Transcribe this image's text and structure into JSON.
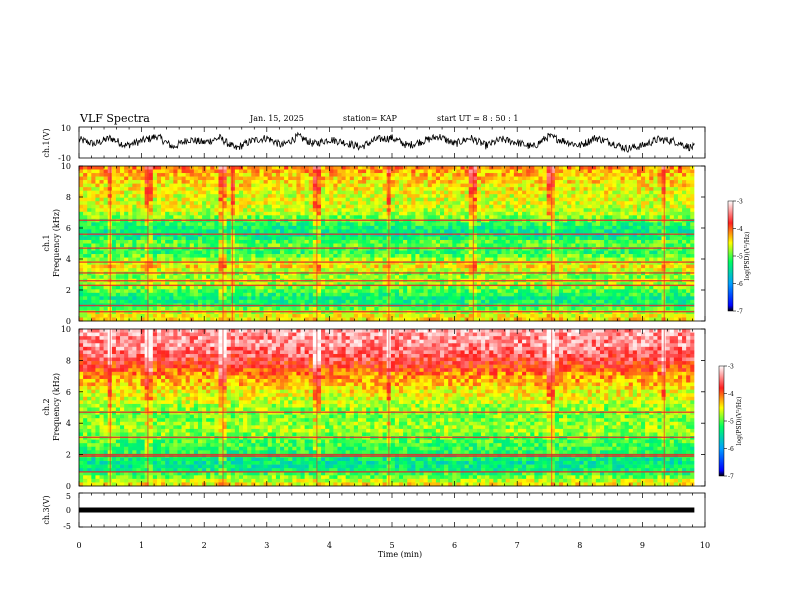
{
  "header": {
    "title": "VLF Spectra",
    "date": "Jan. 15, 2025",
    "station": "station= KAP",
    "start_ut": "start  UT =  8 : 50 : 1"
  },
  "chart_data": [
    {
      "type": "line",
      "panel": "ch1-waveform",
      "ylabel": "ch.1(V)",
      "ylim": [
        -10,
        10
      ],
      "yticks": [
        "10",
        "-10"
      ],
      "xlim": [
        0,
        10
      ],
      "x_end_min": 9.83,
      "series": [
        {
          "x": [
            0,
            0.25,
            0.5,
            0.75,
            1,
            1.25,
            1.5,
            1.75,
            2,
            2.25,
            2.5,
            2.75,
            3,
            3.25,
            3.5,
            3.75,
            4,
            4.25,
            4.5,
            4.75,
            5,
            5.25,
            5.5,
            5.75,
            6,
            6.25,
            6.5,
            6.75,
            7,
            7.25,
            7.5,
            7.75,
            8,
            8.25,
            8.5,
            8.75,
            9,
            9.25,
            9.5,
            9.75
          ],
          "values": [
            2,
            -1,
            3,
            -2,
            1,
            4,
            -3,
            2,
            0,
            3,
            -4,
            1,
            3,
            -2,
            4,
            -1,
            2,
            0,
            -3,
            2,
            3,
            -2,
            1,
            4,
            -1,
            3,
            -2,
            2,
            0,
            -3,
            4,
            1,
            -2,
            3,
            0,
            -4,
            -2,
            2,
            1,
            -3
          ]
        }
      ],
      "color": "#000000"
    },
    {
      "type": "heatmap",
      "panel": "ch1-spectrogram",
      "ylabel": "ch.1",
      "ylabel2": "Frequency (kHz)",
      "ylim": [
        0,
        10
      ],
      "yticks": [
        "0",
        "2",
        "4",
        "6",
        "8",
        "10"
      ],
      "xlim": [
        0,
        10
      ],
      "x_end_min": 9.83,
      "colorbar": {
        "label": "log(PSD)(V²/Hz)",
        "range": [
          -7,
          -3
        ],
        "ticks": [
          "-3",
          "-4",
          "-5",
          "-6",
          "-7"
        ],
        "colors": [
          "#ffffff",
          "#ff2020",
          "#ffff00",
          "#00ff60",
          "#00a0ff",
          "#0000ff",
          "#000000"
        ]
      },
      "freq_profile_khz": [
        0,
        0.5,
        1,
        1.5,
        2,
        2.5,
        3,
        3.5,
        4,
        4.5,
        5,
        5.5,
        6,
        6.5,
        7,
        7.5,
        8,
        8.5,
        9,
        9.5,
        10
      ],
      "freq_profile_logpsd": [
        -4.4,
        -4.6,
        -5.2,
        -5.3,
        -5.0,
        -4.7,
        -4.9,
        -4.4,
        -4.8,
        -5.2,
        -4.9,
        -5.4,
        -5.3,
        -5.0,
        -4.7,
        -4.6,
        -4.6,
        -4.5,
        -4.4,
        -4.3,
        -4.1
      ],
      "lines_khz": [
        3.8,
        2.6,
        2.3,
        5.6,
        6.5,
        4.7,
        1.0,
        0.6,
        3.1
      ],
      "bursts_min": [
        0.5,
        1.1,
        2.3,
        2.45,
        3.8,
        4.95,
        6.3,
        7.55,
        9.35
      ]
    },
    {
      "type": "heatmap",
      "panel": "ch2-spectrogram",
      "ylabel": "ch.2",
      "ylabel2": "Frequency (kHz)",
      "ylim": [
        0,
        10
      ],
      "yticks": [
        "0",
        "2",
        "4",
        "6",
        "8",
        "10"
      ],
      "xlim": [
        0,
        10
      ],
      "x_end_min": 9.83,
      "colorbar": {
        "label": "log(PSD)(V²/Hz)",
        "range": [
          -7,
          -3
        ],
        "ticks": [
          "-3",
          "-4",
          "-5",
          "-6",
          "-7"
        ],
        "colors": [
          "#ffffff",
          "#ff2020",
          "#ffff00",
          "#00ff60",
          "#00a0ff",
          "#0000ff",
          "#000000"
        ]
      },
      "freq_profile_khz": [
        0,
        0.5,
        1,
        1.5,
        2,
        2.5,
        3,
        3.5,
        4,
        4.5,
        5,
        5.5,
        6,
        6.5,
        7,
        7.5,
        8,
        8.5,
        9,
        9.5,
        10
      ],
      "freq_profile_logpsd": [
        -4.4,
        -4.8,
        -5.3,
        -5.4,
        -5.2,
        -5.1,
        -5.0,
        -4.8,
        -4.8,
        -4.9,
        -4.8,
        -4.6,
        -4.5,
        -4.3,
        -4.2,
        -3.9,
        -3.7,
        -3.5,
        -3.4,
        -3.4,
        -3.3
      ],
      "lines_khz": [
        4.7,
        3.1,
        2.0,
        1.9,
        0.9
      ],
      "bursts_min": [
        0.5,
        1.1,
        2.3,
        3.8,
        4.95,
        7.55,
        9.35
      ]
    },
    {
      "type": "line",
      "panel": "ch3-waveform",
      "ylabel": "ch.3(V)",
      "ylim": [
        -5,
        5
      ],
      "yticks": [
        "5",
        "0",
        "-5"
      ],
      "xlim": [
        0,
        10
      ],
      "x_end_min": 9.83,
      "series": [
        {
          "x": [
            0,
            9.83
          ],
          "values": [
            0,
            0
          ]
        }
      ],
      "color": "#000000"
    }
  ],
  "time_axis": {
    "xlabel": "Time (min)",
    "ticks": [
      "0",
      "1",
      "2",
      "3",
      "4",
      "5",
      "6",
      "7",
      "8",
      "9",
      "10"
    ]
  }
}
